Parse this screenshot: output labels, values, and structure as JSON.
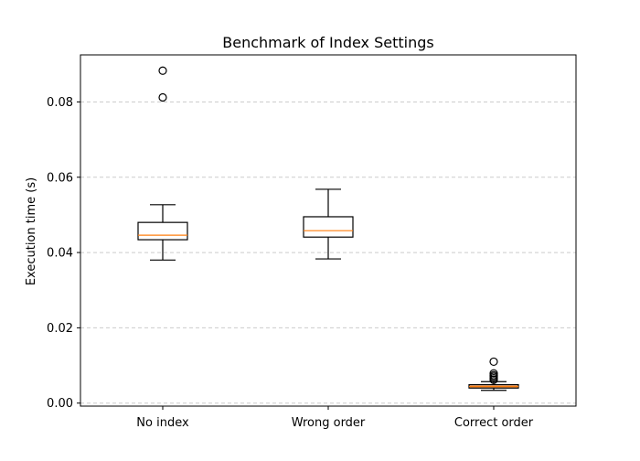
{
  "chart_data": {
    "type": "boxplot",
    "title": "Benchmark of Index Settings",
    "xlabel": "",
    "ylabel": "Execution time (s)",
    "categories": [
      "No index",
      "Wrong order",
      "Correct order"
    ],
    "ylim": [
      -0.0008,
      0.0925
    ],
    "yticks": [
      0.0,
      0.02,
      0.04,
      0.06,
      0.08
    ],
    "ytick_labels": [
      "0.00",
      "0.02",
      "0.04",
      "0.06",
      "0.08"
    ],
    "grid": "y-dashed",
    "boxes": [
      {
        "category": "No index",
        "whisker_low": 0.038,
        "q1": 0.0434,
        "median": 0.0446,
        "q3": 0.048,
        "whisker_high": 0.0527,
        "outliers": [
          0.0812,
          0.0883
        ],
        "filled": false
      },
      {
        "category": "Wrong order",
        "whisker_low": 0.0383,
        "q1": 0.0441,
        "median": 0.0458,
        "q3": 0.0495,
        "whisker_high": 0.0568,
        "outliers": [],
        "filled": false
      },
      {
        "category": "Correct order",
        "whisker_low": 0.0034,
        "q1": 0.004,
        "median": 0.0044,
        "q3": 0.0049,
        "whisker_high": 0.0057,
        "outliers": [
          0.0062,
          0.0066,
          0.007,
          0.0074,
          0.0079,
          0.011
        ],
        "filled": true
      }
    ],
    "colors": {
      "box_edge": "#000000",
      "median": "#ff7f0e",
      "box_fill_filled": "#f0a36a",
      "grid": "#cccccc"
    }
  }
}
